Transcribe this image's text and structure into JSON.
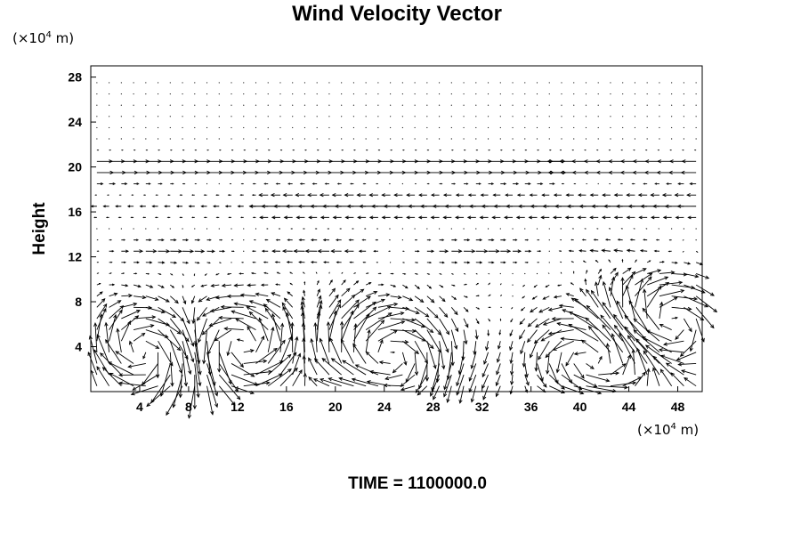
{
  "chart_data": {
    "type": "vector-field",
    "title": "Wind Velocity Vector",
    "ylabel": "Height",
    "y_unit": {
      "prefix": "(×10",
      "exp": "4",
      "suffix": " m)"
    },
    "x_unit": {
      "prefix": "(×10",
      "exp": "4",
      "suffix": " m)"
    },
    "xlim": [
      0,
      50
    ],
    "ylim": [
      0,
      29
    ],
    "xticks": [
      4,
      8,
      12,
      16,
      20,
      24,
      28,
      32,
      36,
      40,
      44,
      48
    ],
    "yticks": [
      4,
      8,
      12,
      16,
      20,
      24,
      28
    ],
    "x_tick_labels": [
      "4",
      "8",
      "12",
      "16",
      "20",
      "24",
      "28",
      "32",
      "36",
      "40",
      "44",
      "48"
    ],
    "y_tick_labels": [
      "4",
      "8",
      "12",
      "16",
      "20",
      "24",
      "28"
    ],
    "grid": false,
    "legend": "none",
    "vector_grid": {
      "nx": 50,
      "ny": 28,
      "x0": 0.5,
      "dx": 1.0,
      "y0": 0.5,
      "dy": 1.0
    },
    "features": {
      "upper_jet_y": 20,
      "reverse_jet_y": 16.5,
      "vortices": [
        {
          "x": 5,
          "y": 3.5,
          "sense": "cw"
        },
        {
          "x": 12,
          "y": 4,
          "sense": "ccw"
        },
        {
          "x": 24,
          "y": 3.5,
          "sense": "cw"
        },
        {
          "x": 41,
          "y": 3,
          "sense": "ccw"
        },
        {
          "x": 47,
          "y": 6,
          "sense": "cw"
        }
      ]
    },
    "colors": {
      "line": "#000000",
      "background": "#ffffff"
    }
  },
  "footer": {
    "time_label": "TIME = 1100000.0"
  }
}
